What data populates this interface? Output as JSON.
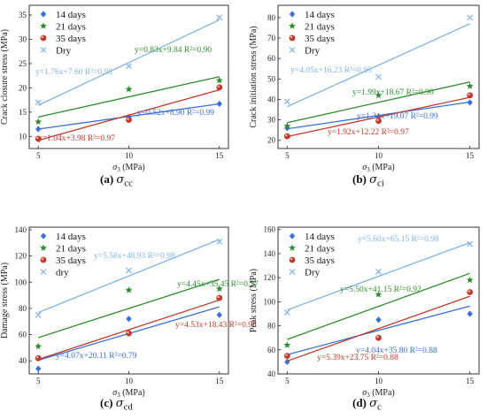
{
  "chart_data": [
    {
      "type": "scatter",
      "panel_label": "(a)",
      "caption_symbol": "σ",
      "caption_sub": "cc",
      "xlabel_symbol": "σ",
      "xlabel_sub": "3",
      "xlabel_unit": " (MPa)",
      "ylabel": "Crack closure stress (MPa)",
      "xlim": [
        4.5,
        15.5
      ],
      "ylim": [
        7.5,
        37
      ],
      "xticks": [
        5,
        10,
        15
      ],
      "yticks": [
        10,
        15,
        20,
        25,
        30,
        35
      ],
      "legend_position": "top-left",
      "series": [
        {
          "name": "14 days",
          "marker": "diamond",
          "color": "#3a6fd8",
          "x": [
            5,
            10,
            15
          ],
          "y": [
            11.5,
            14.0,
            16.7
          ],
          "fit": {
            "slope": 0.52,
            "intercept": 8.9
          },
          "equation": "y=0.52x+8.90 R²=0.99"
        },
        {
          "name": "21 days",
          "marker": "star",
          "color": "#2e8b2e",
          "x": [
            5,
            10,
            15
          ],
          "y": [
            13.0,
            19.7,
            21.5
          ],
          "fit": {
            "slope": 0.83,
            "intercept": 9.84
          },
          "equation": "y=0.83x+9.84 R²=0.90"
        },
        {
          "name": "35 days",
          "marker": "ball",
          "color": "#c0392b",
          "x": [
            5,
            10,
            15
          ],
          "y": [
            9.5,
            13.4,
            20.1
          ],
          "fit": {
            "slope": 1.04,
            "intercept": 3.98
          },
          "equation": "y=1.04x+3.98 R²=0.97"
        },
        {
          "name": "Dry",
          "marker": "x",
          "color": "#7fb2e5",
          "x": [
            5,
            10,
            15
          ],
          "y": [
            17.0,
            24.5,
            34.5
          ],
          "fit": {
            "slope": 1.76,
            "intercept": 7.6
          },
          "equation": "y=1.76x+7.60 R²=0.98"
        }
      ]
    },
    {
      "type": "scatter",
      "panel_label": "(b)",
      "caption_symbol": "σ",
      "caption_sub": "ci",
      "xlabel_symbol": "σ",
      "xlabel_sub": "3",
      "xlabel_unit": " (MPa)",
      "ylabel": "Crack initiation stress (MPa)",
      "xlim": [
        4.5,
        15.5
      ],
      "ylim": [
        16,
        86
      ],
      "xticks": [
        5,
        10,
        15
      ],
      "yticks": [
        20,
        30,
        40,
        50,
        60,
        70,
        80
      ],
      "legend_position": "top-left",
      "series": [
        {
          "name": "14 days",
          "marker": "diamond",
          "color": "#3a6fd8",
          "x": [
            5,
            10,
            15
          ],
          "y": [
            26.0,
            31.5,
            38.5
          ],
          "fit": {
            "slope": 1.31,
            "intercept": 19.07
          },
          "equation": "y=1.31x+19.07 R²=0.99"
        },
        {
          "name": "21 days",
          "marker": "star",
          "color": "#2e8b2e",
          "x": [
            5,
            10,
            15
          ],
          "y": [
            27.0,
            42.0,
            46.5
          ],
          "fit": {
            "slope": 1.99,
            "intercept": 18.67
          },
          "equation": "y=1.99x+18.67 R²=0.90"
        },
        {
          "name": "35 days",
          "marker": "ball",
          "color": "#c0392b",
          "x": [
            5,
            10,
            15
          ],
          "y": [
            22.0,
            29.5,
            42.0
          ],
          "fit": {
            "slope": 1.92,
            "intercept": 12.22
          },
          "equation": "y=1.92x+12.22 R²=0.97"
        },
        {
          "name": "Dry",
          "marker": "x",
          "color": "#7fb2e5",
          "x": [
            5,
            10,
            15
          ],
          "y": [
            39.0,
            51.0,
            80.0
          ],
          "fit": {
            "slope": 4.05,
            "intercept": 16.23
          },
          "equation": "y=4.05x+16.23 R²=0.95"
        }
      ]
    },
    {
      "type": "scatter",
      "panel_label": "(c)",
      "caption_symbol": "σ",
      "caption_sub": "cd",
      "xlabel_symbol": "σ",
      "xlabel_sub": "3",
      "xlabel_unit": " (MPa)",
      "ylabel": "Damage stress (MPa)",
      "xlim": [
        4.5,
        15.5
      ],
      "ylim": [
        30,
        142
      ],
      "xticks": [
        5,
        10,
        15
      ],
      "yticks": [
        40,
        60,
        80,
        100,
        120,
        140
      ],
      "legend_position": "top-left",
      "series": [
        {
          "name": "14 days",
          "marker": "diamond",
          "color": "#3a6fd8",
          "x": [
            5,
            10,
            15
          ],
          "y": [
            34.0,
            72.0,
            75.0
          ],
          "fit": {
            "slope": 4.07,
            "intercept": 20.11
          },
          "equation": "y=4.07x+20.11 R²=0.79"
        },
        {
          "name": "21 days",
          "marker": "star",
          "color": "#2e8b2e",
          "x": [
            5,
            10,
            15
          ],
          "y": [
            51.0,
            94.0,
            95.0
          ],
          "fit": {
            "slope": 4.45,
            "intercept": 35.45
          },
          "equation": "y=4.45x+35.45 R²=0.77"
        },
        {
          "name": "35 days",
          "marker": "ball",
          "color": "#c0392b",
          "x": [
            5,
            10,
            15
          ],
          "y": [
            42.0,
            61.0,
            88.0
          ],
          "fit": {
            "slope": 4.53,
            "intercept": 18.43
          },
          "equation": "y=4.53x+18.43 R²=0.98"
        },
        {
          "name": "dry",
          "marker": "x",
          "color": "#7fb2e5",
          "x": [
            5,
            10,
            15
          ],
          "y": [
            75.0,
            109.0,
            131.0
          ],
          "fit": {
            "slope": 5.58,
            "intercept": 48.93
          },
          "equation": "y=5.58x+48.93 R²=0.98"
        }
      ]
    },
    {
      "type": "scatter",
      "panel_label": "(d)",
      "caption_symbol": "σ",
      "caption_sub": "c",
      "xlabel_symbol": "σ",
      "xlabel_sub": "3",
      "xlabel_unit": " (MPa)",
      "ylabel": "Peak stress (MPa)",
      "xlim": [
        4.5,
        15.5
      ],
      "ylim": [
        40,
        162
      ],
      "xticks": [
        5,
        10,
        15
      ],
      "yticks": [
        40,
        60,
        80,
        100,
        120,
        140,
        160
      ],
      "legend_position": "top-left",
      "series": [
        {
          "name": "14 days",
          "marker": "diamond",
          "color": "#3a6fd8",
          "x": [
            5,
            10,
            15
          ],
          "y": [
            50.0,
            85.0,
            90.0
          ],
          "fit": {
            "slope": 4.04,
            "intercept": 35.8
          },
          "equation": "y=4.04x+35.80 R²=0.88"
        },
        {
          "name": "21 days",
          "marker": "star",
          "color": "#2e8b2e",
          "x": [
            5,
            10,
            15
          ],
          "y": [
            64.0,
            106.0,
            118.0
          ],
          "fit": {
            "slope": 5.5,
            "intercept": 41.15
          },
          "equation": "y=5.50x+41.15 R²=0.92"
        },
        {
          "name": "35 days",
          "marker": "ball",
          "color": "#c0392b",
          "x": [
            5,
            10,
            15
          ],
          "y": [
            55.0,
            70.0,
            108.0
          ],
          "fit": {
            "slope": 5.39,
            "intercept": 23.75
          },
          "equation": "y=5.39x+23.75 R²=0.88"
        },
        {
          "name": "Dry",
          "marker": "x",
          "color": "#7fb2e5",
          "x": [
            5,
            10,
            15
          ],
          "y": [
            91.0,
            125.0,
            148.0
          ],
          "fit": {
            "slope": 5.6,
            "intercept": 65.15
          },
          "equation": "y=5.60x+65.15 R²=0.98"
        }
      ]
    }
  ]
}
